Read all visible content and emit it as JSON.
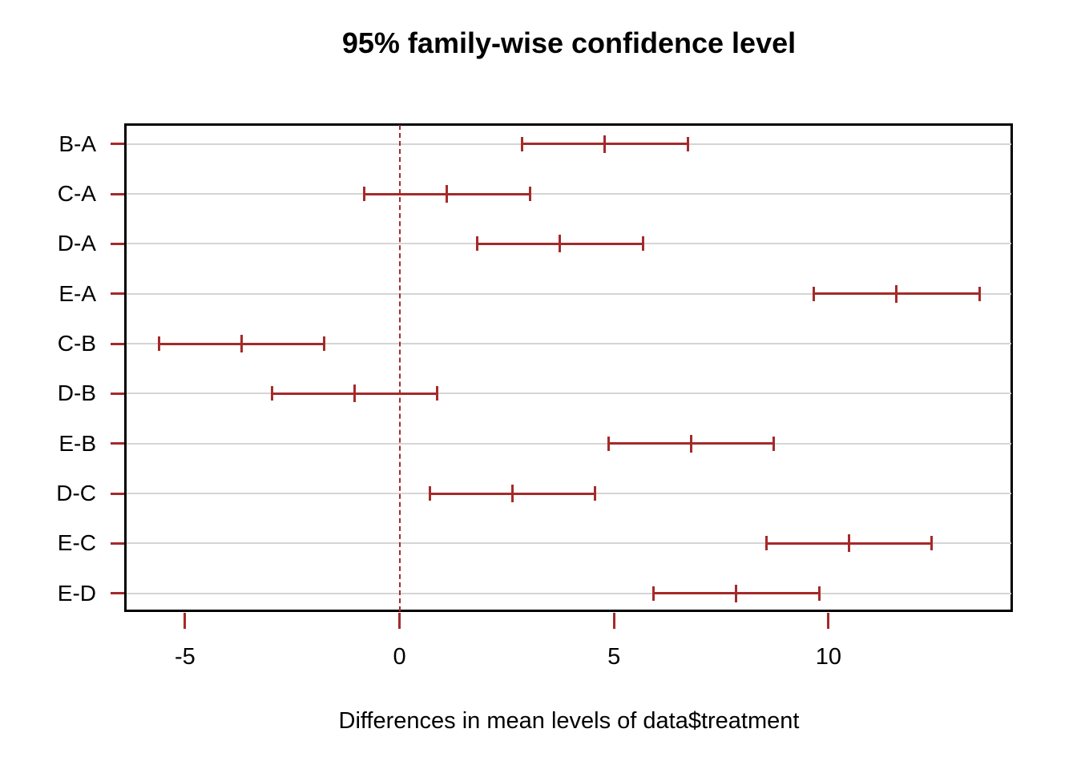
{
  "chart_data": {
    "type": "tukey_hsd_intervals",
    "title": "95% family-wise confidence level",
    "xlabel": "Differences in mean levels of data$treatment",
    "confidence_level": "95%",
    "categories": [
      "B-A",
      "C-A",
      "D-A",
      "E-A",
      "C-B",
      "D-B",
      "E-B",
      "D-C",
      "E-C",
      "E-D"
    ],
    "series": [
      {
        "name": "B-A",
        "lwr": 2.86,
        "diff": 4.79,
        "upr": 6.72
      },
      {
        "name": "C-A",
        "lwr": -0.82,
        "diff": 1.11,
        "upr": 3.04
      },
      {
        "name": "D-A",
        "lwr": 1.81,
        "diff": 3.74,
        "upr": 5.67
      },
      {
        "name": "E-A",
        "lwr": 9.66,
        "diff": 11.59,
        "upr": 13.52
      },
      {
        "name": "C-B",
        "lwr": -5.61,
        "diff": -3.68,
        "upr": -1.75
      },
      {
        "name": "D-B",
        "lwr": -2.98,
        "diff": -1.05,
        "upr": 0.88
      },
      {
        "name": "E-B",
        "lwr": 4.87,
        "diff": 6.8,
        "upr": 8.73
      },
      {
        "name": "D-C",
        "lwr": 0.7,
        "diff": 2.63,
        "upr": 4.56
      },
      {
        "name": "E-C",
        "lwr": 8.55,
        "diff": 10.48,
        "upr": 12.41
      },
      {
        "name": "E-D",
        "lwr": 5.92,
        "diff": 7.85,
        "upr": 9.78
      }
    ],
    "xlim": [
      -6.38,
      14.28
    ],
    "x_ticks": [
      -5,
      0,
      5,
      10
    ],
    "x_tick_labels": [
      "-5",
      "0",
      "5",
      "10"
    ],
    "reference_line_x": 0,
    "reference_line_style": "dashed",
    "grid": true,
    "legend": "none",
    "colors": {
      "interval": "#A52A2A",
      "reference_line": "#A52A2A",
      "axis_tick": "#A52A2A",
      "grid": "#D5D5D5",
      "box": "#000000",
      "text": "#000000",
      "background": "#FFFFFF"
    }
  }
}
